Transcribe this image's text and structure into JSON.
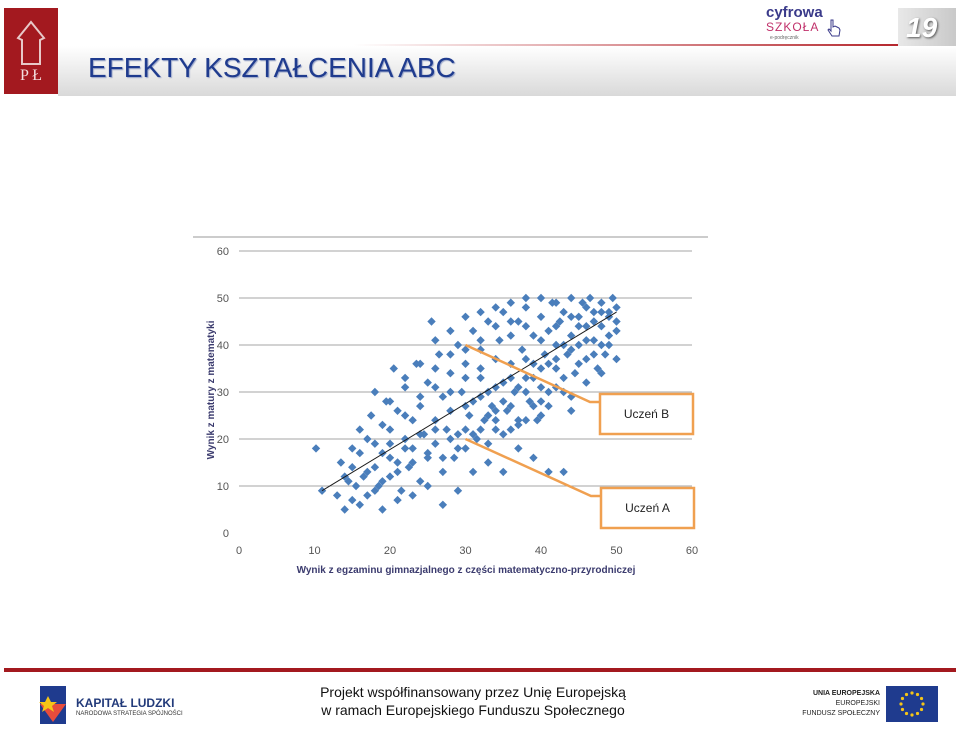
{
  "header": {
    "title": "EFEKTY KSZTAŁCENIA ABC",
    "page_number": "19",
    "brand_line1": "cyfrowa",
    "brand_line2": "SZKOŁA",
    "brand_line3": "e-podręcznik",
    "logo_letters": "P Ł"
  },
  "footer": {
    "line1": "Projekt współfinansowany przez Unię Europejską",
    "line2": "w ramach Europejskiego Funduszu Społecznego",
    "left_logo_title": "KAPITAŁ LUDZKI",
    "left_logo_sub": "NARODOWA STRATEGIA SPÓJNOŚCI",
    "right_logo_1": "UNIA EUROPEJSKA",
    "right_logo_2": "EUROPEJSKI",
    "right_logo_3": "FUNDUSZ SPOŁECZNY"
  },
  "colors": {
    "brand_red": "#a3191f",
    "title_blue": "#1f3b8e",
    "point": "#4a7ebb",
    "trend": "#1a1a1a",
    "annotation": "#f0a050"
  },
  "chart_data": {
    "type": "scatter",
    "title": "",
    "xlabel": "Wynik z egzaminu gimnazjalnego  z części matematyczno-przyrodniczej",
    "ylabel": "Wynik  z  matury z  matematyki",
    "xlim": [
      0,
      60
    ],
    "ylim": [
      0,
      60
    ],
    "xticks": [
      0,
      10,
      20,
      30,
      40,
      50,
      60
    ],
    "yticks": [
      0,
      10,
      20,
      30,
      40,
      50,
      60
    ],
    "grid": "horizontal",
    "trendline": {
      "from": [
        11,
        9
      ],
      "to": [
        50,
        47
      ]
    },
    "points": [
      [
        10.2,
        18
      ],
      [
        11,
        9
      ],
      [
        13,
        8
      ],
      [
        13.5,
        15
      ],
      [
        14,
        5
      ],
      [
        14.5,
        11
      ],
      [
        15,
        7
      ],
      [
        15,
        14
      ],
      [
        15.5,
        10
      ],
      [
        16,
        17
      ],
      [
        16,
        6
      ],
      [
        16.5,
        12
      ],
      [
        17,
        8
      ],
      [
        17,
        20
      ],
      [
        17.5,
        25
      ],
      [
        18,
        14
      ],
      [
        18,
        30
      ],
      [
        18.5,
        10
      ],
      [
        19,
        17
      ],
      [
        19,
        23
      ],
      [
        19.5,
        28
      ],
      [
        20,
        12
      ],
      [
        20,
        19
      ],
      [
        20.5,
        35
      ],
      [
        21,
        15
      ],
      [
        21,
        26
      ],
      [
        21.5,
        9
      ],
      [
        22,
        20
      ],
      [
        22,
        31
      ],
      [
        22.5,
        14
      ],
      [
        23,
        24
      ],
      [
        23,
        18
      ],
      [
        23.5,
        36
      ],
      [
        24,
        11
      ],
      [
        24,
        27
      ],
      [
        24.5,
        21
      ],
      [
        25,
        16
      ],
      [
        25,
        32
      ],
      [
        25.5,
        45
      ],
      [
        26,
        24
      ],
      [
        26,
        19
      ],
      [
        26.5,
        38
      ],
      [
        27,
        13
      ],
      [
        27,
        29
      ],
      [
        27.5,
        22
      ],
      [
        28,
        26
      ],
      [
        28,
        34
      ],
      [
        28.5,
        16
      ],
      [
        29,
        40
      ],
      [
        29,
        21
      ],
      [
        29.5,
        30
      ],
      [
        30,
        18
      ],
      [
        30,
        36
      ],
      [
        30.5,
        25
      ],
      [
        31,
        43
      ],
      [
        31,
        28
      ],
      [
        31.5,
        20
      ],
      [
        32,
        33
      ],
      [
        32,
        39
      ],
      [
        32.5,
        24
      ],
      [
        33,
        45
      ],
      [
        33,
        30
      ],
      [
        33.5,
        27
      ],
      [
        34,
        37
      ],
      [
        34,
        22
      ],
      [
        34.5,
        41
      ],
      [
        35,
        32
      ],
      [
        35,
        47
      ],
      [
        35.5,
        26
      ],
      [
        36,
        36
      ],
      [
        36,
        42
      ],
      [
        36.5,
        30
      ],
      [
        37,
        45
      ],
      [
        37,
        23
      ],
      [
        37.5,
        39
      ],
      [
        38,
        33
      ],
      [
        38,
        48
      ],
      [
        38.5,
        28
      ],
      [
        39,
        42
      ],
      [
        39,
        36
      ],
      [
        39.5,
        24
      ],
      [
        40,
        46
      ],
      [
        40,
        31
      ],
      [
        40.5,
        38
      ],
      [
        41,
        43
      ],
      [
        41,
        27
      ],
      [
        41.5,
        49
      ],
      [
        42,
        35
      ],
      [
        42,
        40
      ],
      [
        42.5,
        45
      ],
      [
        43,
        30
      ],
      [
        43,
        47
      ],
      [
        43.5,
        38
      ],
      [
        44,
        50
      ],
      [
        44,
        42
      ],
      [
        44.5,
        34
      ],
      [
        45,
        46
      ],
      [
        45,
        40
      ],
      [
        45.5,
        49
      ],
      [
        46,
        37
      ],
      [
        46,
        44
      ],
      [
        46.5,
        50
      ],
      [
        47,
        41
      ],
      [
        47,
        47
      ],
      [
        47.5,
        35
      ],
      [
        48,
        49
      ],
      [
        48,
        44
      ],
      [
        48.5,
        38
      ],
      [
        49,
        46
      ],
      [
        49,
        42
      ],
      [
        49.5,
        50
      ],
      [
        50,
        48
      ],
      [
        50,
        37
      ],
      [
        50,
        43
      ],
      [
        49,
        40
      ],
      [
        48,
        34
      ],
      [
        47,
        38
      ],
      [
        44,
        26
      ],
      [
        43,
        13
      ],
      [
        41,
        13
      ],
      [
        39,
        16
      ],
      [
        37,
        18
      ],
      [
        35,
        13
      ],
      [
        33,
        15
      ],
      [
        31,
        13
      ],
      [
        29,
        9
      ],
      [
        27,
        6
      ],
      [
        25,
        10
      ],
      [
        23,
        8
      ],
      [
        21,
        7
      ],
      [
        19,
        5
      ],
      [
        18,
        9
      ],
      [
        17,
        13
      ],
      [
        15,
        18
      ],
      [
        14,
        12
      ],
      [
        16,
        22
      ],
      [
        20,
        28
      ],
      [
        22,
        33
      ],
      [
        24,
        36
      ],
      [
        26,
        41
      ],
      [
        28,
        43
      ],
      [
        30,
        46
      ],
      [
        32,
        47
      ],
      [
        34,
        48
      ],
      [
        36,
        49
      ],
      [
        38,
        50
      ],
      [
        40,
        50
      ],
      [
        42,
        49
      ],
      [
        20,
        22
      ],
      [
        22,
        25
      ],
      [
        24,
        29
      ],
      [
        26,
        31
      ],
      [
        28,
        30
      ],
      [
        30,
        33
      ],
      [
        32,
        35
      ],
      [
        34,
        31
      ],
      [
        36,
        33
      ],
      [
        38,
        37
      ],
      [
        40,
        35
      ],
      [
        42,
        37
      ],
      [
        44,
        39
      ],
      [
        46,
        41
      ],
      [
        27,
        16
      ],
      [
        29,
        18
      ],
      [
        31,
        21
      ],
      [
        33,
        19
      ],
      [
        35,
        21
      ],
      [
        37,
        24
      ],
      [
        39,
        27
      ],
      [
        41,
        30
      ],
      [
        43,
        33
      ],
      [
        45,
        36
      ],
      [
        19,
        11
      ],
      [
        21,
        13
      ],
      [
        23,
        15
      ],
      [
        25,
        17
      ],
      [
        33,
        25
      ],
      [
        35,
        28
      ],
      [
        37,
        31
      ],
      [
        39,
        33
      ],
      [
        41,
        36
      ],
      [
        43,
        40
      ],
      [
        45,
        44
      ],
      [
        47,
        45
      ],
      [
        49,
        47
      ],
      [
        30,
        27
      ],
      [
        32,
        29
      ],
      [
        34,
        26
      ],
      [
        36,
        27
      ],
      [
        38,
        30
      ],
      [
        40,
        28
      ],
      [
        42,
        31
      ],
      [
        44,
        29
      ],
      [
        46,
        32
      ],
      [
        48,
        40
      ],
      [
        50,
        45
      ],
      [
        26,
        35
      ],
      [
        28,
        38
      ],
      [
        30,
        39
      ],
      [
        32,
        41
      ],
      [
        34,
        44
      ],
      [
        36,
        45
      ],
      [
        38,
        44
      ],
      [
        40,
        41
      ],
      [
        42,
        44
      ],
      [
        44,
        46
      ],
      [
        46,
        48
      ],
      [
        48,
        47
      ],
      [
        18,
        19
      ],
      [
        20,
        16
      ],
      [
        22,
        18
      ],
      [
        24,
        21
      ],
      [
        26,
        22
      ],
      [
        28,
        20
      ],
      [
        30,
        22
      ],
      [
        32,
        22
      ],
      [
        34,
        24
      ],
      [
        36,
        22
      ],
      [
        38,
        24
      ],
      [
        40,
        25
      ]
    ],
    "annotations": [
      {
        "label": "Uczeń B",
        "points_to": [
          30,
          40
        ]
      },
      {
        "label": "Uczeń A",
        "points_to": [
          30,
          20
        ]
      }
    ]
  }
}
